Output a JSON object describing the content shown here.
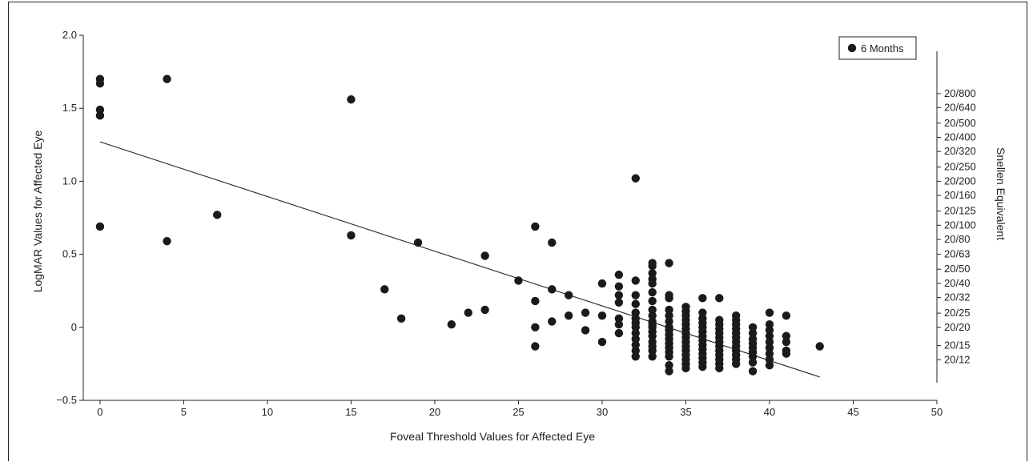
{
  "chart_data": {
    "type": "scatter",
    "xlabel": "Foveal Threshold Values for Affected Eye",
    "ylabel": "LogMAR Values for Affected Eye",
    "y2label": "Snellen Equivalent",
    "xlim": [
      -1,
      50
    ],
    "ylim": [
      -0.5,
      2.0
    ],
    "xticks": [
      0,
      5,
      10,
      15,
      20,
      25,
      30,
      35,
      40,
      45,
      50
    ],
    "yticks": [
      {
        "value": 2.0,
        "label": "2.0"
      },
      {
        "value": 1.5,
        "label": "1.5"
      },
      {
        "value": 1.0,
        "label": "1.0"
      },
      {
        "value": 0.5,
        "label": "0.5"
      },
      {
        "value": 0.0,
        "label": "0"
      },
      {
        "value": -0.5,
        "label": "−0.5"
      }
    ],
    "y2ticks": [
      {
        "value": 1.6,
        "label": "20/800"
      },
      {
        "value": 1.505,
        "label": "20/640"
      },
      {
        "value": 1.398,
        "label": "20/500"
      },
      {
        "value": 1.301,
        "label": "20/400"
      },
      {
        "value": 1.204,
        "label": "20/320"
      },
      {
        "value": 1.097,
        "label": "20/250"
      },
      {
        "value": 1.0,
        "label": "20/200"
      },
      {
        "value": 0.903,
        "label": "20/160"
      },
      {
        "value": 0.796,
        "label": "20/125"
      },
      {
        "value": 0.699,
        "label": "20/100"
      },
      {
        "value": 0.602,
        "label": "20/80"
      },
      {
        "value": 0.5,
        "label": "20/63"
      },
      {
        "value": 0.398,
        "label": "20/50"
      },
      {
        "value": 0.301,
        "label": "20/40"
      },
      {
        "value": 0.204,
        "label": "20/32"
      },
      {
        "value": 0.097,
        "label": "20/25"
      },
      {
        "value": 0.0,
        "label": "20/20"
      },
      {
        "value": -0.125,
        "label": "20/15"
      },
      {
        "value": -0.222,
        "label": "20/12"
      }
    ],
    "legend": {
      "label": "6 Months",
      "position": "top-right"
    },
    "series": [
      {
        "name": "6 Months",
        "color": "#1a1a1a",
        "points": [
          [
            0,
            1.7
          ],
          [
            0,
            1.67
          ],
          [
            0,
            1.49
          ],
          [
            0,
            1.45
          ],
          [
            0,
            0.69
          ],
          [
            4,
            1.7
          ],
          [
            4,
            0.59
          ],
          [
            7,
            0.77
          ],
          [
            15,
            1.56
          ],
          [
            15,
            0.63
          ],
          [
            17,
            0.26
          ],
          [
            18,
            0.06
          ],
          [
            19,
            0.58
          ],
          [
            21,
            0.02
          ],
          [
            22,
            0.1
          ],
          [
            23,
            0.49
          ],
          [
            23,
            0.12
          ],
          [
            25,
            0.32
          ],
          [
            26,
            0.69
          ],
          [
            26,
            0.18
          ],
          [
            26,
            0.0
          ],
          [
            26,
            -0.13
          ],
          [
            27,
            0.58
          ],
          [
            27,
            0.26
          ],
          [
            27,
            0.04
          ],
          [
            28,
            0.22
          ],
          [
            28,
            0.08
          ],
          [
            29,
            0.1
          ],
          [
            29,
            -0.02
          ],
          [
            30,
            0.3
          ],
          [
            30,
            0.08
          ],
          [
            30,
            -0.1
          ],
          [
            31,
            0.36
          ],
          [
            31,
            0.28
          ],
          [
            31,
            0.22
          ],
          [
            31,
            0.17
          ],
          [
            31,
            0.06
          ],
          [
            31,
            0.02
          ],
          [
            31,
            -0.04
          ],
          [
            32,
            1.02
          ],
          [
            32,
            0.32
          ],
          [
            32,
            0.22
          ],
          [
            32,
            0.16
          ],
          [
            32,
            0.1
          ],
          [
            32,
            0.06
          ],
          [
            32,
            0.03
          ],
          [
            32,
            0.0
          ],
          [
            32,
            -0.04
          ],
          [
            32,
            -0.08
          ],
          [
            32,
            -0.12
          ],
          [
            32,
            -0.16
          ],
          [
            32,
            -0.2
          ],
          [
            33,
            0.44
          ],
          [
            33,
            0.42
          ],
          [
            33,
            0.37
          ],
          [
            33,
            0.33
          ],
          [
            33,
            0.3
          ],
          [
            33,
            0.24
          ],
          [
            33,
            0.18
          ],
          [
            33,
            0.12
          ],
          [
            33,
            0.08
          ],
          [
            33,
            0.04
          ],
          [
            33,
            0.02
          ],
          [
            33,
            0.0
          ],
          [
            33,
            -0.03
          ],
          [
            33,
            -0.06
          ],
          [
            33,
            -0.1
          ],
          [
            33,
            -0.13
          ],
          [
            33,
            -0.16
          ],
          [
            33,
            -0.2
          ],
          [
            34,
            0.44
          ],
          [
            34,
            0.22
          ],
          [
            34,
            0.2
          ],
          [
            34,
            0.12
          ],
          [
            34,
            0.08
          ],
          [
            34,
            0.04
          ],
          [
            34,
            0.0
          ],
          [
            34,
            -0.02
          ],
          [
            34,
            -0.05
          ],
          [
            34,
            -0.08
          ],
          [
            34,
            -0.11
          ],
          [
            34,
            -0.14
          ],
          [
            34,
            -0.17
          ],
          [
            34,
            -0.2
          ],
          [
            34,
            -0.26
          ],
          [
            34,
            -0.3
          ],
          [
            35,
            0.14
          ],
          [
            35,
            0.11
          ],
          [
            35,
            0.08
          ],
          [
            35,
            0.05
          ],
          [
            35,
            0.02
          ],
          [
            35,
            -0.01
          ],
          [
            35,
            -0.04
          ],
          [
            35,
            -0.07
          ],
          [
            35,
            -0.1
          ],
          [
            35,
            -0.13
          ],
          [
            35,
            -0.16
          ],
          [
            35,
            -0.19
          ],
          [
            35,
            -0.22
          ],
          [
            35,
            -0.25
          ],
          [
            35,
            -0.28
          ],
          [
            36,
            0.2
          ],
          [
            36,
            0.1
          ],
          [
            36,
            0.06
          ],
          [
            36,
            0.03
          ],
          [
            36,
            0.0
          ],
          [
            36,
            -0.03
          ],
          [
            36,
            -0.06
          ],
          [
            36,
            -0.09
          ],
          [
            36,
            -0.12
          ],
          [
            36,
            -0.15
          ],
          [
            36,
            -0.18
          ],
          [
            36,
            -0.21
          ],
          [
            36,
            -0.24
          ],
          [
            36,
            -0.27
          ],
          [
            37,
            0.2
          ],
          [
            37,
            0.05
          ],
          [
            37,
            0.02
          ],
          [
            37,
            -0.01
          ],
          [
            37,
            -0.04
          ],
          [
            37,
            -0.07
          ],
          [
            37,
            -0.1
          ],
          [
            37,
            -0.13
          ],
          [
            37,
            -0.16
          ],
          [
            37,
            -0.19
          ],
          [
            37,
            -0.22
          ],
          [
            37,
            -0.25
          ],
          [
            37,
            -0.28
          ],
          [
            38,
            0.08
          ],
          [
            38,
            0.05
          ],
          [
            38,
            0.02
          ],
          [
            38,
            -0.01
          ],
          [
            38,
            -0.04
          ],
          [
            38,
            -0.07
          ],
          [
            38,
            -0.1
          ],
          [
            38,
            -0.13
          ],
          [
            38,
            -0.16
          ],
          [
            38,
            -0.19
          ],
          [
            38,
            -0.22
          ],
          [
            38,
            -0.25
          ],
          [
            39,
            0.0
          ],
          [
            39,
            -0.04
          ],
          [
            39,
            -0.08
          ],
          [
            39,
            -0.11
          ],
          [
            39,
            -0.14
          ],
          [
            39,
            -0.17
          ],
          [
            39,
            -0.2
          ],
          [
            39,
            -0.24
          ],
          [
            39,
            -0.3
          ],
          [
            40,
            0.1
          ],
          [
            40,
            0.02
          ],
          [
            40,
            -0.02
          ],
          [
            40,
            -0.06
          ],
          [
            40,
            -0.1
          ],
          [
            40,
            -0.14
          ],
          [
            40,
            -0.18
          ],
          [
            40,
            -0.22
          ],
          [
            40,
            -0.26
          ],
          [
            41,
            0.08
          ],
          [
            41,
            -0.06
          ],
          [
            41,
            -0.1
          ],
          [
            41,
            -0.16
          ],
          [
            41,
            -0.18
          ],
          [
            43,
            -0.13
          ]
        ]
      }
    ],
    "trendline": {
      "x": [
        0,
        43
      ],
      "y": [
        1.27,
        -0.34
      ]
    }
  }
}
